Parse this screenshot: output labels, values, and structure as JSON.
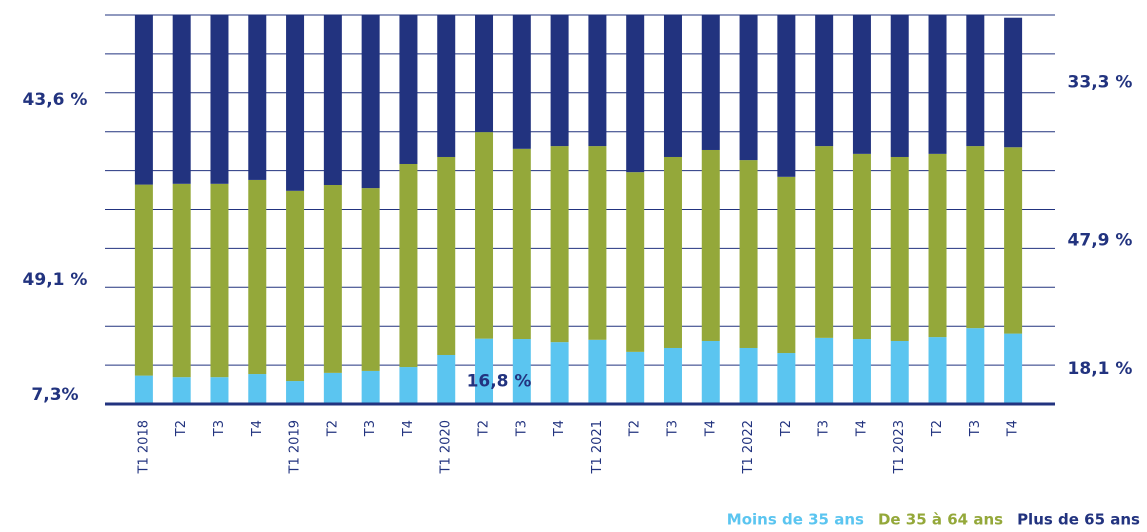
{
  "chart_data": {
    "type": "stacked_bar",
    "categories": [
      "T1 2018",
      "T2",
      "T3",
      "T4",
      "T1 2019",
      "T2",
      "T3",
      "T4",
      "T1 2020",
      "T2",
      "T3",
      "T4",
      "T1 2021",
      "T2",
      "T3",
      "T4",
      "T1 2022",
      "T2",
      "T3",
      "T4",
      "T1 2023",
      "T2",
      "T3",
      "T4"
    ],
    "series": [
      {
        "name": "Moins de 35 ans",
        "color": "#5bc5f0",
        "values": [
          7.3,
          6.9,
          6.9,
          7.7,
          5.9,
          8.0,
          8.5,
          9.5,
          12.6,
          16.8,
          16.7,
          15.9,
          16.5,
          13.4,
          14.4,
          16.2,
          14.4,
          13.1,
          17.0,
          16.7,
          16.2,
          17.2,
          19.5,
          18.1
        ],
        "value_labels": [
          "7,3%",
          null,
          null,
          null,
          null,
          null,
          null,
          null,
          null,
          "16,8 %",
          null,
          null,
          null,
          null,
          null,
          null,
          null,
          null,
          null,
          null,
          null,
          null,
          null,
          "18,1 %"
        ]
      },
      {
        "name": "De 35 à 64 ans",
        "color": "#94a83a",
        "values": [
          49.1,
          49.7,
          49.7,
          49.9,
          48.9,
          48.3,
          47.0,
          52.2,
          50.9,
          53.1,
          48.9,
          50.4,
          49.8,
          46.2,
          49.1,
          49.1,
          48.3,
          45.3,
          49.3,
          47.6,
          47.3,
          47.1,
          46.8,
          47.9
        ],
        "value_labels": [
          "49,1 %",
          null,
          null,
          null,
          null,
          null,
          null,
          null,
          null,
          null,
          null,
          null,
          null,
          null,
          null,
          null,
          null,
          null,
          null,
          null,
          null,
          null,
          null,
          "47,9 %"
        ]
      },
      {
        "name": "Plus de 65 ans",
        "color": "#22337f",
        "values": [
          43.6,
          43.4,
          43.4,
          42.4,
          45.2,
          43.7,
          44.5,
          38.3,
          36.5,
          30.1,
          34.4,
          33.7,
          33.7,
          40.4,
          36.5,
          34.7,
          37.3,
          41.6,
          33.7,
          35.7,
          36.5,
          35.7,
          33.7,
          33.3
        ],
        "value_labels": [
          "43,6 %",
          null,
          null,
          null,
          null,
          null,
          null,
          null,
          null,
          null,
          null,
          null,
          null,
          null,
          null,
          null,
          null,
          null,
          null,
          null,
          null,
          null,
          null,
          "33,3 %"
        ]
      }
    ],
    "ylim": [
      0,
      100
    ],
    "yticks": [
      0,
      10,
      20,
      30,
      40,
      50,
      60,
      70,
      80,
      90,
      100
    ],
    "grid": true
  }
}
